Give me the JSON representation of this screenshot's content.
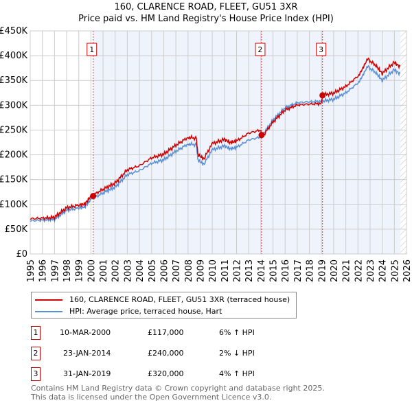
{
  "chart_data": {
    "type": "line",
    "title": "160, CLARENCE ROAD, FLEET, GU51 3XR",
    "subtitle": "Price paid vs. HM Land Registry's House Price Index (HPI)",
    "ylim": [
      0,
      450000
    ],
    "xlim": [
      1995,
      2026
    ],
    "yticks": [
      "£0",
      "£50K",
      "£100K",
      "£150K",
      "£200K",
      "£250K",
      "£300K",
      "£350K",
      "£400K",
      "£450K"
    ],
    "xticks": [
      "1995",
      "1996",
      "1997",
      "1998",
      "1999",
      "2000",
      "2001",
      "2002",
      "2003",
      "2004",
      "2005",
      "2006",
      "2007",
      "2008",
      "2009",
      "2010",
      "2011",
      "2012",
      "2013",
      "2014",
      "2015",
      "2016",
      "2017",
      "2018",
      "2019",
      "2020",
      "2021",
      "2022",
      "2023",
      "2024",
      "2025",
      "2026"
    ],
    "hpi": {
      "name": "HPI: Average price, terraced house, Hart",
      "color": "#5b8fd4",
      "x": [
        1995,
        1996,
        1997,
        1998,
        1999,
        1999.5,
        2000,
        2001,
        2002,
        2003,
        2004,
        2005,
        2006,
        2007,
        2008,
        2008.7,
        2008.8,
        2009.3,
        2010,
        2011,
        2011.5,
        2012,
        2013,
        2014,
        2015,
        2016,
        2017,
        2018,
        2019,
        2020,
        2021,
        2022,
        2022.8,
        2023.5,
        2024,
        2025,
        2025.5
      ],
      "y": [
        67000,
        68000,
        70000,
        88000,
        93000,
        95000,
        110000,
        123000,
        135000,
        160000,
        168000,
        183000,
        190000,
        207000,
        222000,
        220000,
        190000,
        181000,
        210000,
        218000,
        212000,
        215000,
        230000,
        236000,
        270000,
        295000,
        305000,
        307000,
        308000,
        312000,
        325000,
        345000,
        378000,
        365000,
        350000,
        372000,
        362000
      ]
    },
    "property": {
      "name": "160, CLARENCE ROAD, FLEET, GU51 3XR (terraced house)",
      "color": "#cc0000"
    },
    "sales": [
      {
        "n": "1",
        "date": "10-MAR-2000",
        "x": 2000.19,
        "price": 117000,
        "price_label": "£117,000",
        "hpi": "6% ↑ HPI"
      },
      {
        "n": "2",
        "date": "23-JAN-2014",
        "x": 2014.06,
        "price": 240000,
        "price_label": "£240,000",
        "hpi": "2% ↓ HPI"
      },
      {
        "n": "3",
        "date": "31-JAN-2019",
        "x": 2019.08,
        "price": 320000,
        "price_label": "£320,000",
        "hpi": "4% ↑ HPI"
      }
    ],
    "shade_from": 2000.19,
    "hatch_from": 2025.5
  },
  "footer": [
    "Contains HM Land Registry data © Crown copyright and database right 2025.",
    "This data is licensed under the Open Government Licence v3.0."
  ]
}
